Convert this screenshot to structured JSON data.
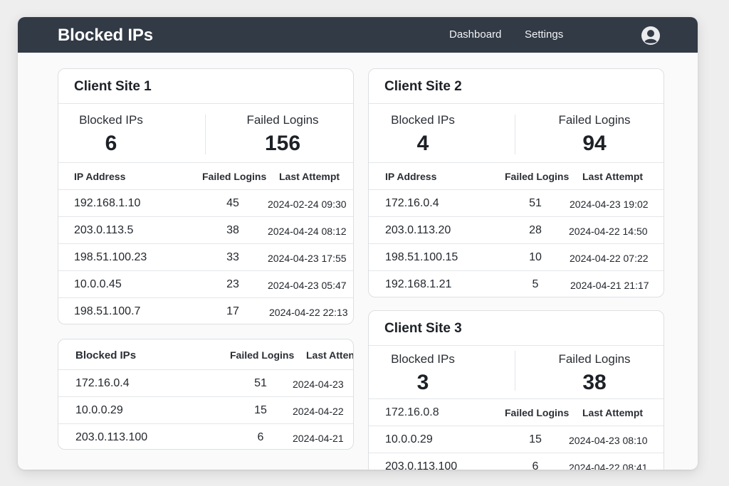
{
  "header": {
    "title": "Blocked IPs",
    "nav": [
      "Dashboard",
      "Settings"
    ],
    "avatar_icon": "user-circle-icon"
  },
  "site1": {
    "title": "Client Site 1",
    "stats": {
      "blocked_label": "Blocked IPs",
      "blocked_value": "6",
      "failed_label": "Failed Logins",
      "failed_value": "156"
    },
    "columns": [
      "IP Address",
      "Failed Logins",
      "Last Attempt"
    ],
    "rows": [
      {
        "ip": "192.168.1.10",
        "count": "45",
        "date": "2024-02-24 09:30"
      },
      {
        "ip": "203.0.113.5",
        "count": "38",
        "date": "2024-04-24 08:12"
      },
      {
        "ip": "198.51.100.23",
        "count": "33",
        "date": "2024-04-23 17:55"
      },
      {
        "ip": "10.0.0.45",
        "count": "23",
        "date": "2024-04-23 05:47"
      },
      {
        "ip": "198.51.100.7",
        "count": "17",
        "date": "2024-04-22 22:13"
      }
    ]
  },
  "blocked_table": {
    "columns": [
      "Blocked IPs",
      "Failed Logins",
      "Last Atten"
    ],
    "rows": [
      {
        "ip": "172.16.0.4",
        "count": "51",
        "date": "2024-04-23"
      },
      {
        "ip": "10.0.0.29",
        "count": "15",
        "date": "2024-04-22"
      },
      {
        "ip": "203.0.113.100",
        "count": "6",
        "date": "2024-04-21"
      }
    ]
  },
  "site2": {
    "title": "Client Site 2",
    "stats": {
      "blocked_label": "Blocked IPs",
      "blocked_value": "4",
      "failed_label": "Failed Logins",
      "failed_value": "94"
    },
    "columns": [
      "IP Address",
      "Failed Logins",
      "Last Attempt"
    ],
    "rows": [
      {
        "ip": "172.16.0.4",
        "count": "51",
        "date": "2024-04-23 19:02"
      },
      {
        "ip": "203.0.113.20",
        "count": "28",
        "date": "2024-04-22 14:50"
      },
      {
        "ip": "198.51.100.15",
        "count": "10",
        "date": "2024-04-22 07:22"
      },
      {
        "ip": "192.168.1.21",
        "count": "5",
        "date": "2024-04-21 21:17"
      }
    ]
  },
  "site3": {
    "title": "Client Site 3",
    "stats": {
      "blocked_label": "Blocked IPs",
      "blocked_value": "3",
      "failed_label": "Failed Logins",
      "failed_value": "38"
    },
    "header_row": [
      "172.16.0.8",
      "Failed Logins",
      "Last Attempt"
    ],
    "rows": [
      {
        "ip": "10.0.0.29",
        "count": "15",
        "date": "2024-04-23 08:10"
      },
      {
        "ip": "203.0.113.100",
        "count": "6",
        "date": "2024-04-22 08:41"
      }
    ]
  }
}
